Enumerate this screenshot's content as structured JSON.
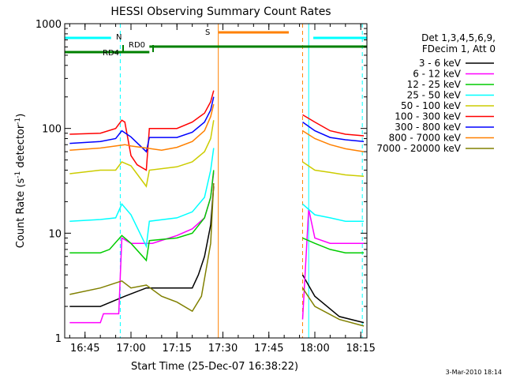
{
  "chart_data": {
    "type": "line",
    "title": "HESSI Observing Summary Count Rates",
    "xlabel": "Start Time (25-Dec-07 16:38:22)",
    "ylabel": "Count Rate (s",
    "ylabel_sup": "-1",
    "ylabel_mid": " detector",
    "ylabel_sup2": "-1",
    "ylabel_end": ")",
    "y_scale": "log",
    "ylim": [
      1,
      1000
    ],
    "xlim": [
      "16:38:22",
      "18:17:00"
    ],
    "x_ticks": [
      "16:45",
      "17:00",
      "17:15",
      "17:30",
      "17:45",
      "18:00",
      "18:15"
    ],
    "y_ticks": [
      "1",
      "10",
      "100",
      "1000"
    ],
    "legend_position": "right",
    "legend_header": [
      "Det 1,3,4,5,6,9,",
      "FDecim 1, Att 0"
    ],
    "timestamp": "3-Mar-2010 18:14",
    "flag_labels": {
      "N": "N",
      "S": "S",
      "RD0": "RD0",
      "RD4": "RD4"
    },
    "series": [
      {
        "name": "3 - 6 keV",
        "color": "#000000",
        "points": [
          [
            "16:40",
            2
          ],
          [
            "16:50",
            2
          ],
          [
            "16:58",
            2.5
          ],
          [
            "17:05",
            3
          ],
          [
            "17:15",
            3
          ],
          [
            "17:20",
            3
          ],
          [
            "17:22",
            4
          ],
          [
            "17:24",
            6
          ],
          [
            "17:26",
            12
          ],
          [
            "17:27",
            28
          ],
          null,
          [
            "17:56",
            4
          ],
          [
            "18:00",
            2.5
          ],
          [
            "18:08",
            1.6
          ],
          [
            "18:16",
            1.4
          ]
        ]
      },
      {
        "name": "6 - 12 keV",
        "color": "#ff00ff",
        "points": [
          [
            "16:40",
            1.4
          ],
          [
            "16:50",
            1.4
          ],
          [
            "16:51",
            1.7
          ],
          [
            "16:56",
            1.7
          ],
          [
            "16:57",
            9
          ],
          [
            "17:00",
            8
          ],
          [
            "17:07",
            8
          ],
          [
            "17:15",
            9.5
          ],
          [
            "17:20",
            11
          ],
          [
            "17:24",
            14
          ],
          [
            "17:26",
            22
          ],
          [
            "17:27",
            38
          ],
          null,
          [
            "17:56",
            1.5
          ],
          [
            "17:58",
            17
          ],
          [
            "18:00",
            9
          ],
          [
            "18:05",
            8
          ],
          [
            "18:10",
            8
          ],
          [
            "18:16",
            8
          ]
        ]
      },
      {
        "name": "12 - 25 keV",
        "color": "#00cc00",
        "points": [
          [
            "16:40",
            6.5
          ],
          [
            "16:50",
            6.5
          ],
          [
            "16:53",
            7
          ],
          [
            "16:57",
            9.5
          ],
          [
            "17:00",
            8
          ],
          [
            "17:05",
            5.5
          ],
          [
            "17:06",
            8.5
          ],
          [
            "17:15",
            9
          ],
          [
            "17:20",
            10
          ],
          [
            "17:24",
            14
          ],
          [
            "17:26",
            22
          ],
          [
            "17:27",
            40
          ],
          null,
          [
            "17:56",
            9
          ],
          [
            "18:00",
            8
          ],
          [
            "18:05",
            7
          ],
          [
            "18:10",
            6.5
          ],
          [
            "18:16",
            6.5
          ]
        ]
      },
      {
        "name": "25 - 50 keV",
        "color": "#00ffff",
        "points": [
          [
            "16:40",
            13
          ],
          [
            "16:50",
            13.5
          ],
          [
            "16:55",
            14
          ],
          [
            "16:57",
            19
          ],
          [
            "17:00",
            15
          ],
          [
            "17:05",
            7.5
          ],
          [
            "17:06",
            13
          ],
          [
            "17:15",
            14
          ],
          [
            "17:20",
            16
          ],
          [
            "17:24",
            22
          ],
          [
            "17:26",
            40
          ],
          [
            "17:27",
            65
          ],
          null,
          [
            "17:56",
            19
          ],
          [
            "18:00",
            15
          ],
          [
            "18:05",
            14
          ],
          [
            "18:10",
            13
          ],
          [
            "18:16",
            13
          ]
        ]
      },
      {
        "name": "50 - 100 keV",
        "color": "#cccc00",
        "points": [
          [
            "16:40",
            37
          ],
          [
            "16:50",
            40
          ],
          [
            "16:55",
            40
          ],
          [
            "16:57",
            48
          ],
          [
            "17:00",
            44
          ],
          [
            "17:05",
            28
          ],
          [
            "17:06",
            40
          ],
          [
            "17:15",
            43
          ],
          [
            "17:20",
            48
          ],
          [
            "17:24",
            60
          ],
          [
            "17:26",
            80
          ],
          [
            "17:27",
            120
          ],
          null,
          [
            "17:56",
            48
          ],
          [
            "18:00",
            40
          ],
          [
            "18:05",
            38
          ],
          [
            "18:10",
            36
          ],
          [
            "18:16",
            35
          ]
        ]
      },
      {
        "name": "100 - 300 keV",
        "color": "#ff0000",
        "points": [
          [
            "16:40",
            88
          ],
          [
            "16:50",
            90
          ],
          [
            "16:55",
            100
          ],
          [
            "16:57",
            120
          ],
          [
            "16:58",
            115
          ],
          [
            "17:00",
            55
          ],
          [
            "17:02",
            45
          ],
          [
            "17:05",
            40
          ],
          [
            "17:06",
            100
          ],
          [
            "17:15",
            100
          ],
          [
            "17:20",
            115
          ],
          [
            "17:24",
            140
          ],
          [
            "17:26",
            180
          ],
          [
            "17:27",
            230
          ],
          null,
          [
            "17:56",
            135
          ],
          [
            "18:00",
            115
          ],
          [
            "18:05",
            95
          ],
          [
            "18:10",
            88
          ],
          [
            "18:16",
            85
          ]
        ]
      },
      {
        "name": "300 - 800 keV",
        "color": "#0000ff",
        "points": [
          [
            "16:40",
            72
          ],
          [
            "16:50",
            75
          ],
          [
            "16:55",
            80
          ],
          [
            "16:57",
            95
          ],
          [
            "17:00",
            83
          ],
          [
            "17:05",
            60
          ],
          [
            "17:06",
            82
          ],
          [
            "17:15",
            82
          ],
          [
            "17:20",
            92
          ],
          [
            "17:24",
            115
          ],
          [
            "17:26",
            150
          ],
          [
            "17:27",
            200
          ],
          null,
          [
            "17:56",
            115
          ],
          [
            "18:00",
            95
          ],
          [
            "18:05",
            82
          ],
          [
            "18:10",
            78
          ],
          [
            "18:16",
            75
          ]
        ]
      },
      {
        "name": "800 - 7000 keV",
        "color": "#ff8000",
        "points": [
          [
            "16:40",
            62
          ],
          [
            "16:50",
            65
          ],
          [
            "16:55",
            68
          ],
          [
            "16:58",
            70
          ],
          [
            "17:00",
            68
          ],
          [
            "17:05",
            65
          ],
          [
            "17:10",
            62
          ],
          [
            "17:15",
            66
          ],
          [
            "17:20",
            75
          ],
          [
            "17:24",
            95
          ],
          [
            "17:26",
            130
          ],
          [
            "17:27",
            170
          ],
          null,
          [
            "17:56",
            95
          ],
          [
            "18:00",
            80
          ],
          [
            "18:05",
            70
          ],
          [
            "18:10",
            64
          ],
          [
            "18:16",
            60
          ]
        ]
      },
      {
        "name": "7000 - 20000 keV",
        "color": "#808000",
        "points": [
          [
            "16:40",
            2.6
          ],
          [
            "16:50",
            3
          ],
          [
            "16:57",
            3.5
          ],
          [
            "17:00",
            3
          ],
          [
            "17:05",
            3.2
          ],
          [
            "17:10",
            2.5
          ],
          [
            "17:15",
            2.2
          ],
          [
            "17:20",
            1.8
          ],
          [
            "17:23",
            2.5
          ],
          [
            "17:26",
            8
          ],
          [
            "17:27",
            30
          ],
          null,
          [
            "17:56",
            3
          ],
          [
            "18:00",
            2
          ],
          [
            "18:08",
            1.5
          ],
          [
            "18:16",
            1.3
          ]
        ]
      }
    ],
    "flag_bars": [
      {
        "label": "N",
        "color": "#00ffff",
        "start": "16:38:22",
        "end": "16:53:30"
      },
      {
        "label": "N",
        "color": "#00ffff",
        "start": "17:59:30",
        "end": "18:17:00"
      },
      {
        "label": "S",
        "color": "#ff8000",
        "start": "17:28:30",
        "end": "17:51:30"
      },
      {
        "label": "RD0",
        "color": "#008000",
        "start": "17:06:00",
        "end": "18:17:00"
      },
      {
        "label": "RD4",
        "color": "#008000",
        "start": "16:38:22",
        "end": "17:06:00"
      }
    ],
    "vlines": [
      {
        "time": "16:56:30",
        "color": "#00ffff",
        "style": "dashed"
      },
      {
        "time": "17:58:00",
        "color": "#00ffff",
        "style": "solid"
      },
      {
        "time": "18:15:30",
        "color": "#00ffff",
        "style": "dashed"
      },
      {
        "time": "17:28:30",
        "color": "#ff8000",
        "style": "solid"
      },
      {
        "time": "17:56:00",
        "color": "#ff8000",
        "style": "dashed"
      }
    ]
  }
}
